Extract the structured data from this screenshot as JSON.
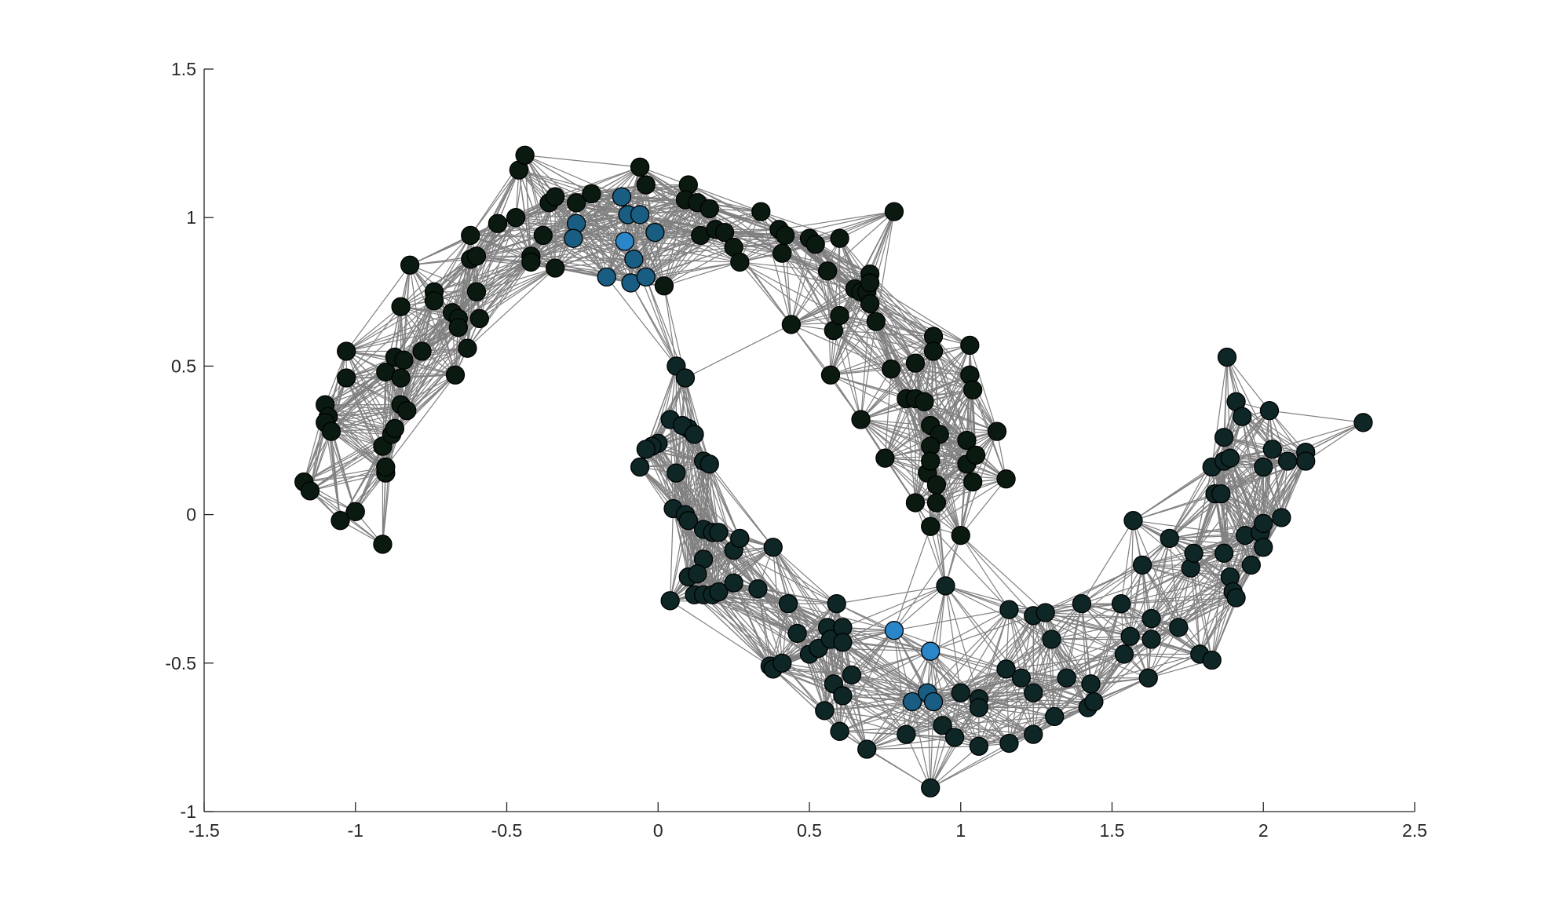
{
  "chart_data": {
    "type": "scatter",
    "xlim": [
      -1.5,
      2.5
    ],
    "xticks": [
      -1.5,
      -1,
      -0.5,
      0,
      0.5,
      1,
      1.5,
      2,
      2.5
    ],
    "ylim": [
      -1,
      1.5
    ],
    "yticks": [
      -1,
      -0.5,
      0,
      0.5,
      1,
      1.5
    ],
    "edge_color": "#808080",
    "series": [
      {
        "color": "#0b1a10",
        "x": [
          -1.17,
          -1.15,
          -1.05,
          -1.0,
          -0.91,
          -0.9,
          -0.9,
          -0.91,
          -0.88,
          -0.87,
          -1.1,
          -1.09,
          -1.1,
          -1.08,
          -1.03,
          -1.03,
          -0.9,
          -0.87,
          -0.84,
          -0.85,
          -0.85,
          -0.83,
          -0.85,
          -0.82,
          -0.78,
          -0.74,
          -0.74,
          -0.68,
          -0.66,
          -0.66,
          -0.67,
          -0.63,
          -0.62,
          -0.6,
          -0.6,
          -0.59,
          -0.62,
          -0.53,
          -0.47,
          -0.46,
          -0.44,
          -0.42,
          -0.42,
          -0.38,
          -0.36,
          -0.34,
          -0.34,
          -0.27,
          -0.22,
          -0.06,
          -0.04,
          0.02,
          0.1,
          0.09,
          0.13,
          0.14,
          0.17,
          0.19,
          0.22,
          0.25,
          0.27,
          0.34,
          0.4,
          0.41,
          0.42,
          0.44,
          0.5,
          0.52,
          0.56,
          0.58,
          0.6,
          0.6,
          0.57,
          0.65,
          0.67,
          0.69,
          0.7,
          0.7,
          0.7,
          0.72,
          0.67,
          0.78,
          0.77,
          0.75,
          0.82,
          0.85,
          0.85,
          0.88,
          0.9,
          0.91,
          0.91,
          0.93,
          0.9,
          0.89,
          0.9,
          0.92,
          0.92,
          0.85,
          0.9,
          1.0,
          1.03,
          1.03,
          1.04,
          1.02,
          1.02,
          1.05,
          1.04,
          1.12,
          1.15
        ],
        "values": [
          0.11,
          0.08,
          -0.02,
          0.01,
          -0.1,
          0.14,
          0.16,
          0.23,
          0.27,
          0.29,
          0.37,
          0.33,
          0.31,
          0.28,
          0.46,
          0.55,
          0.48,
          0.53,
          0.52,
          0.46,
          0.37,
          0.35,
          0.7,
          0.84,
          0.55,
          0.75,
          0.72,
          0.68,
          0.66,
          0.63,
          0.47,
          0.56,
          0.86,
          0.87,
          0.75,
          0.66,
          0.94,
          0.98,
          1.0,
          1.16,
          1.21,
          0.87,
          0.85,
          0.94,
          1.05,
          1.07,
          0.83,
          1.05,
          1.08,
          1.17,
          1.11,
          0.77,
          1.11,
          1.06,
          1.05,
          0.94,
          1.03,
          0.96,
          0.95,
          0.9,
          0.85,
          1.02,
          0.96,
          0.88,
          0.94,
          0.64,
          0.93,
          0.91,
          0.82,
          0.62,
          0.67,
          0.93,
          0.47,
          0.76,
          0.75,
          0.75,
          0.81,
          0.78,
          0.71,
          0.65,
          0.32,
          1.02,
          0.49,
          0.19,
          0.39,
          0.39,
          0.51,
          0.38,
          0.3,
          0.6,
          0.55,
          0.27,
          0.23,
          0.14,
          0.18,
          0.1,
          0.04,
          0.04,
          -0.04,
          -0.07,
          0.57,
          0.47,
          0.42,
          0.25,
          0.17,
          0.2,
          0.11,
          0.28,
          0.12
        ]
      },
      {
        "color": "#0e2626",
        "x": [
          0.06,
          0.09,
          0.04,
          0.1,
          0.08,
          0.12,
          0.0,
          -0.02,
          -0.04,
          -0.06,
          0.06,
          0.15,
          0.17,
          0.05,
          0.09,
          0.1,
          0.15,
          0.18,
          0.2,
          0.15,
          0.1,
          0.13,
          0.12,
          0.15,
          0.18,
          0.2,
          0.25,
          0.27,
          0.25,
          0.33,
          0.04,
          0.38,
          0.43,
          0.46,
          0.5,
          0.53,
          0.56,
          0.57,
          0.59,
          0.61,
          0.61,
          0.37,
          0.38,
          0.41,
          0.58,
          0.61,
          0.64,
          0.55,
          0.6,
          0.69,
          0.82,
          0.9,
          0.94,
          0.98,
          1.0,
          1.06,
          1.06,
          1.06,
          1.15,
          1.16,
          1.2,
          1.24,
          1.24,
          1.16,
          1.24,
          1.28,
          1.3,
          1.31,
          1.35,
          1.4,
          1.42,
          1.43,
          1.44,
          1.53,
          1.54,
          1.56,
          1.57,
          1.6,
          1.62,
          1.63,
          1.63,
          1.72,
          1.69,
          1.76,
          1.77,
          1.79,
          1.83,
          1.83,
          1.84,
          1.86,
          1.87,
          1.87,
          1.88,
          1.89,
          1.91,
          1.93,
          1.87,
          1.89,
          1.9,
          1.91,
          1.94,
          1.96,
          1.99,
          2.0,
          2.0,
          2.0,
          2.02,
          2.03,
          2.06,
          2.08,
          2.14,
          2.14,
          2.33,
          0.95
        ],
        "values": [
          0.5,
          0.46,
          0.32,
          0.29,
          0.3,
          0.27,
          0.24,
          0.23,
          0.22,
          0.16,
          0.14,
          0.18,
          0.17,
          0.02,
          0.0,
          -0.02,
          -0.05,
          -0.06,
          -0.06,
          -0.15,
          -0.21,
          -0.2,
          -0.27,
          -0.27,
          -0.27,
          -0.26,
          -0.12,
          -0.08,
          -0.23,
          -0.25,
          -0.29,
          -0.11,
          -0.3,
          -0.4,
          -0.47,
          -0.45,
          -0.38,
          -0.42,
          -0.3,
          -0.38,
          -0.43,
          -0.51,
          -0.52,
          -0.5,
          -0.57,
          -0.61,
          -0.54,
          -0.66,
          -0.73,
          -0.79,
          -0.74,
          -0.92,
          -0.71,
          -0.75,
          -0.6,
          -0.62,
          -0.65,
          -0.78,
          -0.52,
          -0.77,
          -0.55,
          -0.6,
          -0.74,
          -0.32,
          -0.34,
          -0.33,
          -0.42,
          -0.68,
          -0.55,
          -0.3,
          -0.65,
          -0.57,
          -0.63,
          -0.3,
          -0.47,
          -0.41,
          -0.02,
          -0.17,
          -0.55,
          -0.42,
          -0.35,
          -0.38,
          -0.08,
          -0.18,
          -0.13,
          -0.47,
          -0.49,
          0.16,
          0.07,
          0.07,
          0.26,
          0.18,
          0.53,
          0.19,
          0.38,
          0.33,
          -0.13,
          -0.21,
          -0.26,
          -0.28,
          -0.07,
          -0.17,
          -0.06,
          -0.03,
          -0.11,
          0.16,
          0.35,
          0.22,
          -0.01,
          0.18,
          0.21,
          0.18,
          0.31,
          -0.24
        ]
      },
      {
        "color": "#1a5d82",
        "x": [
          -0.27,
          -0.28,
          -0.17,
          -0.12,
          -0.1,
          -0.06,
          -0.01,
          -0.08,
          -0.09,
          -0.04,
          0.84,
          0.89,
          0.91
        ],
        "values": [
          0.98,
          0.93,
          0.8,
          1.07,
          1.01,
          1.01,
          0.95,
          0.86,
          0.78,
          0.8,
          -0.63,
          -0.6,
          -0.63
        ]
      },
      {
        "color": "#2a86c8",
        "x": [
          -0.11,
          0.78,
          0.9
        ],
        "values": [
          0.92,
          -0.39,
          -0.46
        ]
      }
    ]
  }
}
